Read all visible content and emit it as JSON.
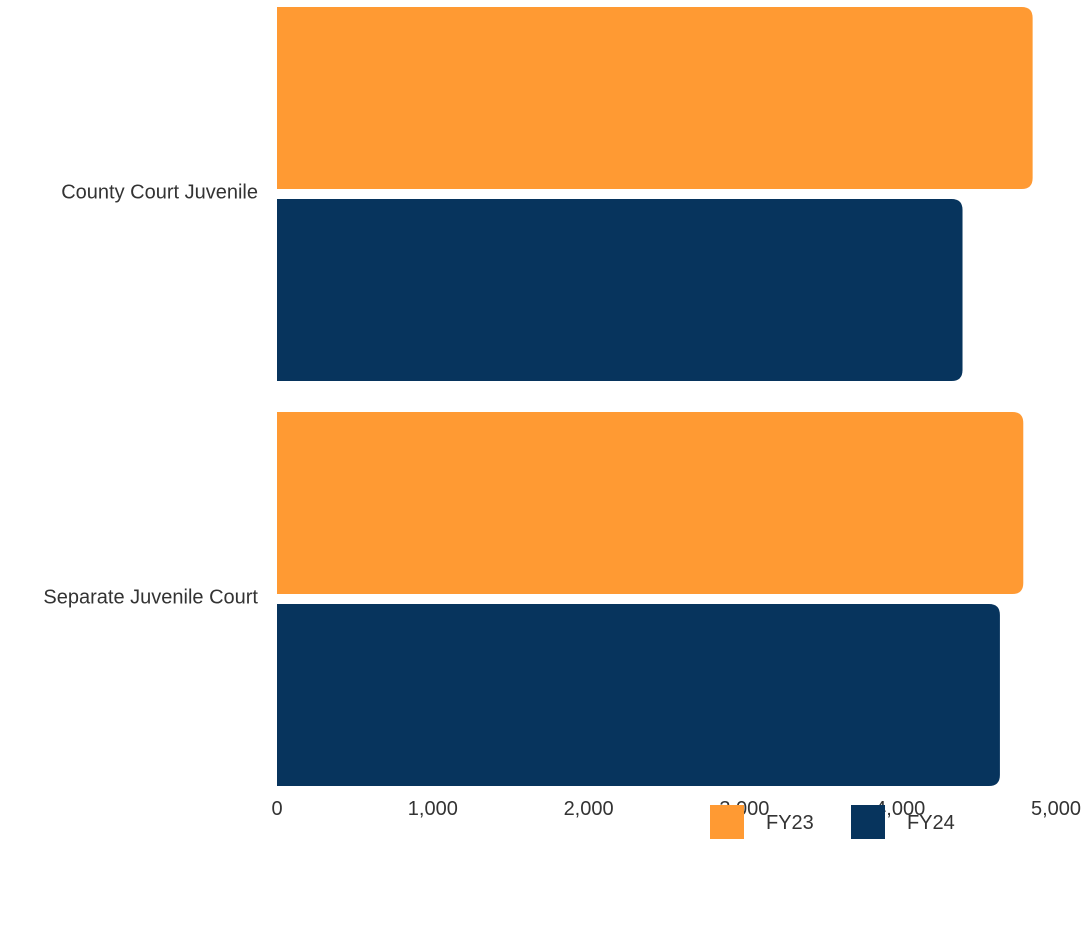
{
  "chart_data": {
    "type": "bar",
    "orientation": "horizontal",
    "categories": [
      "County Court Juvenile",
      "Separate Juvenile Court"
    ],
    "series": [
      {
        "name": "FY23",
        "values": [
          4850,
          4790
        ],
        "color": "#ff9a33"
      },
      {
        "name": "FY24",
        "values": [
          4400,
          4640
        ],
        "color": "#07345d"
      }
    ],
    "xlim": [
      0,
      5000
    ],
    "xticks": [
      0,
      1000,
      2000,
      3000,
      4000,
      5000
    ],
    "xtick_labels": [
      "0",
      "1,000",
      "2,000",
      "3,000",
      "4,000",
      "5,000"
    ],
    "grid": false,
    "legend_position": "bottom-right"
  }
}
